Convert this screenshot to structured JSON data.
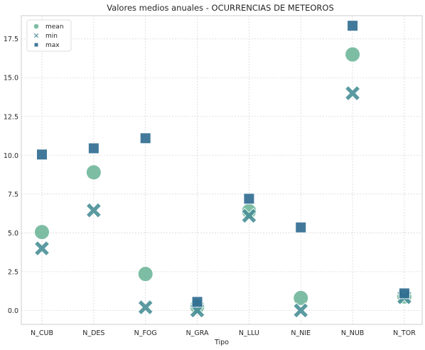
{
  "chart_data": {
    "type": "scatter",
    "title": "Valores medios anuales - OCURRENCIAS DE METEOROS",
    "xlabel": "Tipo",
    "ylabel": "",
    "categories": [
      "N_CUB",
      "N_DES",
      "N_FOG",
      "N_GRA",
      "N_LLU",
      "N_NIE",
      "N_NUB",
      "N_TOR"
    ],
    "ylim": [
      -0.9,
      19.0
    ],
    "yticks": [
      "0.0",
      "2.5",
      "5.0",
      "7.5",
      "10.0",
      "12.5",
      "15.0",
      "17.5"
    ],
    "grid": true,
    "legend_position": "top-left",
    "series": [
      {
        "name": "mean",
        "marker": "circle",
        "color": "#6fb69b",
        "values": [
          5.05,
          8.9,
          2.35,
          0.25,
          6.4,
          0.8,
          16.5,
          0.9
        ]
      },
      {
        "name": "min",
        "marker": "x",
        "color": "#4a9097",
        "values": [
          4.0,
          6.45,
          0.2,
          0.0,
          6.1,
          0.0,
          14.0,
          0.85
        ]
      },
      {
        "name": "max",
        "marker": "square",
        "color": "#2e6b91",
        "values": [
          10.05,
          10.45,
          11.1,
          0.55,
          7.2,
          5.35,
          18.35,
          1.1
        ]
      }
    ]
  }
}
